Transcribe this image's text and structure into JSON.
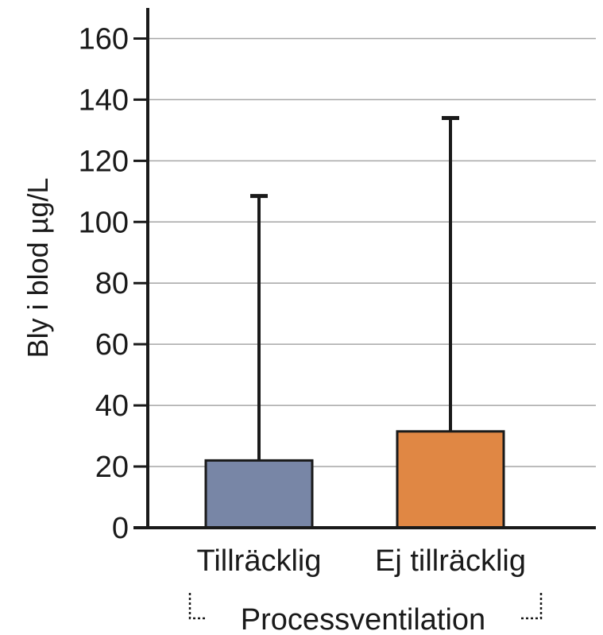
{
  "chart_data": {
    "type": "bar",
    "categories": [
      "Tillräcklig",
      "Ej tillräcklig"
    ],
    "values": [
      22,
      31.5
    ],
    "error_upper": [
      108.5,
      134
    ],
    "colors": [
      "#7886a6",
      "#e08744"
    ],
    "ylabel": "Bly i blod µg/L",
    "xlabel": "Processventilation",
    "ylim": [
      0,
      170
    ],
    "yticks": [
      0,
      20,
      40,
      60,
      80,
      100,
      120,
      140,
      160
    ],
    "grid": true
  }
}
